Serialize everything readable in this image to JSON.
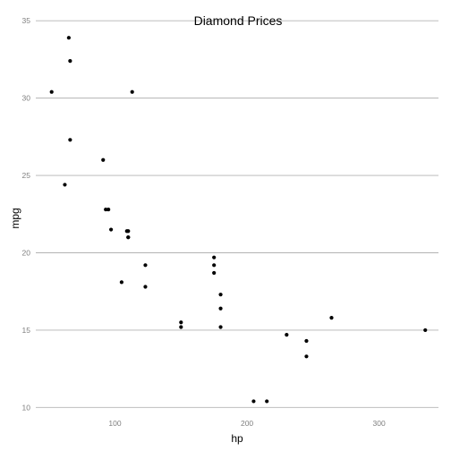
{
  "chart_data": {
    "type": "scatter",
    "title": "Diamond Prices",
    "xlabel": "hp",
    "ylabel": "mpg",
    "xlim": [
      40,
      345
    ],
    "ylim": [
      9.5,
      35.3
    ],
    "xticks": [
      100,
      200,
      300
    ],
    "yticks": [
      10,
      15,
      20,
      25,
      30,
      35
    ],
    "grid": {
      "horizontal": true,
      "vertical": false
    },
    "colors": {
      "point": "#000000",
      "grid": "#b3b3b3",
      "tick_text": "#7f7f7f"
    },
    "points": [
      {
        "x": 110,
        "y": 21.0
      },
      {
        "x": 110,
        "y": 21.0
      },
      {
        "x": 93,
        "y": 22.8
      },
      {
        "x": 110,
        "y": 21.4
      },
      {
        "x": 175,
        "y": 18.7
      },
      {
        "x": 105,
        "y": 18.1
      },
      {
        "x": 245,
        "y": 14.3
      },
      {
        "x": 62,
        "y": 24.4
      },
      {
        "x": 95,
        "y": 22.8
      },
      {
        "x": 123,
        "y": 19.2
      },
      {
        "x": 123,
        "y": 17.8
      },
      {
        "x": 180,
        "y": 16.4
      },
      {
        "x": 180,
        "y": 17.3
      },
      {
        "x": 180,
        "y": 15.2
      },
      {
        "x": 205,
        "y": 10.4
      },
      {
        "x": 215,
        "y": 10.4
      },
      {
        "x": 230,
        "y": 14.7
      },
      {
        "x": 66,
        "y": 32.4
      },
      {
        "x": 52,
        "y": 30.4
      },
      {
        "x": 65,
        "y": 33.9
      },
      {
        "x": 97,
        "y": 21.5
      },
      {
        "x": 150,
        "y": 15.5
      },
      {
        "x": 150,
        "y": 15.2
      },
      {
        "x": 245,
        "y": 13.3
      },
      {
        "x": 175,
        "y": 19.2
      },
      {
        "x": 66,
        "y": 27.3
      },
      {
        "x": 91,
        "y": 26.0
      },
      {
        "x": 113,
        "y": 30.4
      },
      {
        "x": 264,
        "y": 15.8
      },
      {
        "x": 175,
        "y": 19.7
      },
      {
        "x": 335,
        "y": 15.0
      },
      {
        "x": 109,
        "y": 21.4
      }
    ]
  }
}
